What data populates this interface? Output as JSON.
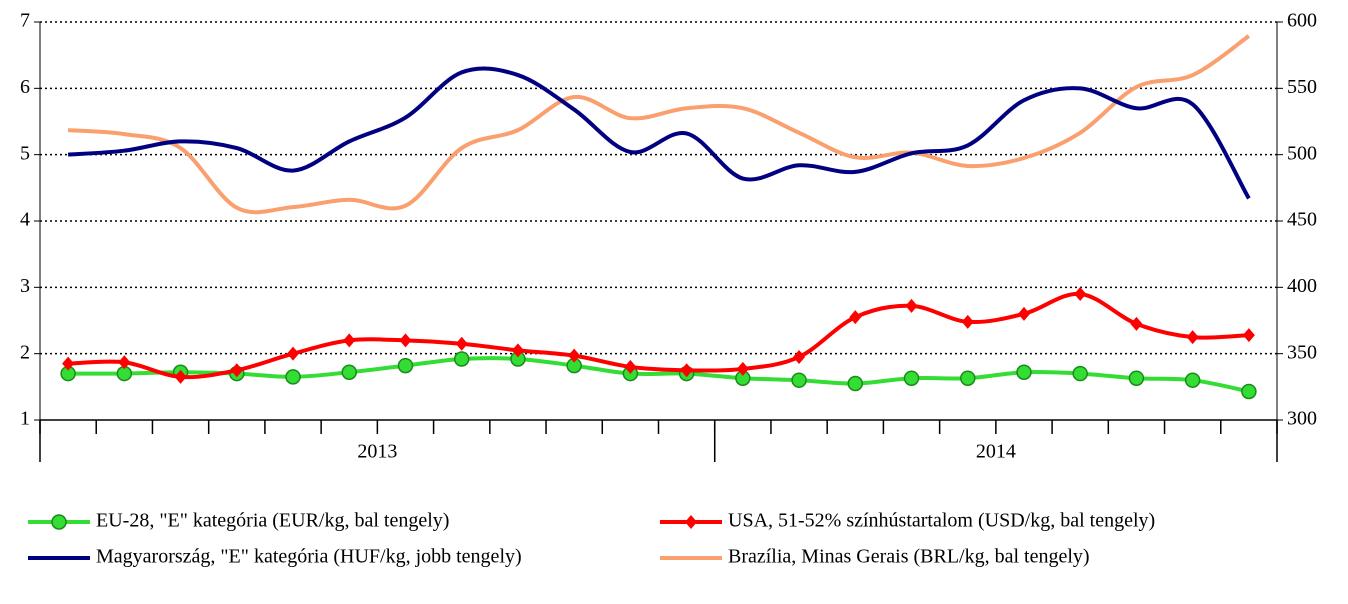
{
  "chart_data": {
    "type": "line",
    "categories": [
      null,
      null,
      null,
      null,
      null,
      null,
      null,
      null,
      null,
      null,
      null,
      null,
      null,
      null,
      null,
      null,
      null,
      null,
      null,
      null,
      null,
      null
    ],
    "year_groups": [
      {
        "label": "2013",
        "months": 12
      },
      {
        "label": "2014",
        "months": 10
      }
    ],
    "ylim": [
      1,
      7
    ],
    "yticks": [
      1,
      2,
      3,
      4,
      5,
      6,
      7
    ],
    "y2lim": [
      300,
      600
    ],
    "y2ticks": [
      300,
      350,
      400,
      450,
      500,
      550,
      600
    ],
    "grid": true,
    "series": [
      {
        "name": "EU-28, \"E\" kategória (EUR/kg, bal tengely)",
        "color": "#33dd33",
        "marker": "circle",
        "values": [
          1.7,
          1.7,
          1.72,
          1.7,
          1.65,
          1.72,
          1.82,
          1.92,
          1.92,
          1.82,
          1.7,
          1.7,
          1.63,
          1.6,
          1.55,
          1.63,
          1.63,
          1.72,
          1.7,
          1.63,
          1.6,
          1.43
        ]
      },
      {
        "name": "USA, 51-52% színhústartalom (USD/kg, bal tengely)",
        "color": "#ff0000",
        "marker": "diamond",
        "values": [
          1.85,
          1.87,
          1.65,
          1.75,
          2.0,
          2.2,
          2.2,
          2.15,
          2.05,
          1.97,
          1.8,
          1.75,
          1.77,
          1.95,
          2.55,
          2.72,
          2.48,
          2.6,
          2.9,
          2.45,
          2.25,
          2.28
        ]
      },
      {
        "name": "Magyarország, \"E\" kategória (HUF/kg, jobb tengely)",
        "color": "#000080",
        "axis": "y2",
        "values": [
          500,
          503,
          510,
          505,
          488,
          510,
          528,
          562,
          560,
          534,
          502,
          516,
          482,
          492,
          487,
          501,
          507,
          541,
          550,
          535,
          538,
          467
        ]
      },
      {
        "name": "Brazília, Minas Gerais (BRL/kg, bal tengely)",
        "color": "#fa9f6e",
        "values": [
          5.37,
          5.31,
          5.1,
          4.2,
          4.21,
          4.32,
          4.23,
          5.1,
          5.37,
          5.87,
          5.55,
          5.7,
          5.7,
          5.33,
          4.96,
          5.03,
          4.83,
          4.95,
          5.33,
          6.02,
          6.2,
          6.79
        ]
      }
    ]
  }
}
